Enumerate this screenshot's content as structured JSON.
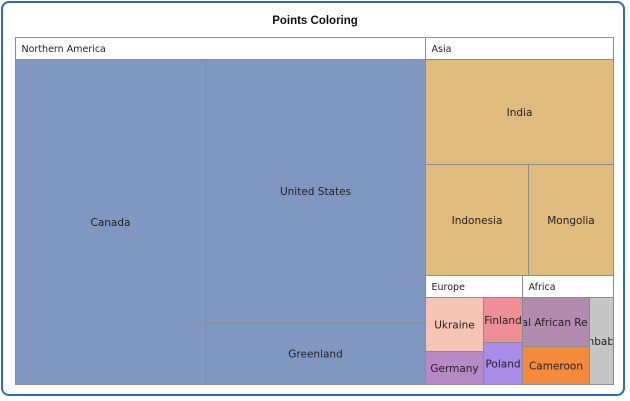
{
  "chart_data": {
    "type": "treemap",
    "title": "Points Coloring",
    "colors": {
      "header_fill": "#ffffff",
      "border": "#8c8c8c"
    },
    "groups": [
      {
        "name": "Northern America",
        "children": [
          {
            "name": "Canada",
            "color": "#7f97c1"
          },
          {
            "name": "United States",
            "color": "#7f97c1"
          },
          {
            "name": "Greenland",
            "color": "#7f97c1"
          }
        ]
      },
      {
        "name": "Asia",
        "children": [
          {
            "name": "India",
            "color": "#dfbb7e"
          },
          {
            "name": "Indonesia",
            "color": "#dfbb7e"
          },
          {
            "name": "Mongolia",
            "color": "#dfbb7e"
          }
        ],
        "subgroups": [
          {
            "name": "Europe",
            "children": [
              {
                "name": "Ukraine",
                "color": "#f5c4b4"
              },
              {
                "name": "Finland",
                "color": "#f08e98"
              },
              {
                "name": "Germany",
                "color": "#b78ac5"
              },
              {
                "name": "Poland",
                "color": "#a98ce8"
              }
            ]
          },
          {
            "name": "Africa",
            "children": [
              {
                "name": "Central African Republic",
                "color": "#b38ab0"
              },
              {
                "name": "Zimbabwe",
                "color": "#c6c6c6"
              },
              {
                "name": "Cameroon",
                "color": "#f48a3c"
              }
            ]
          }
        ]
      }
    ]
  }
}
